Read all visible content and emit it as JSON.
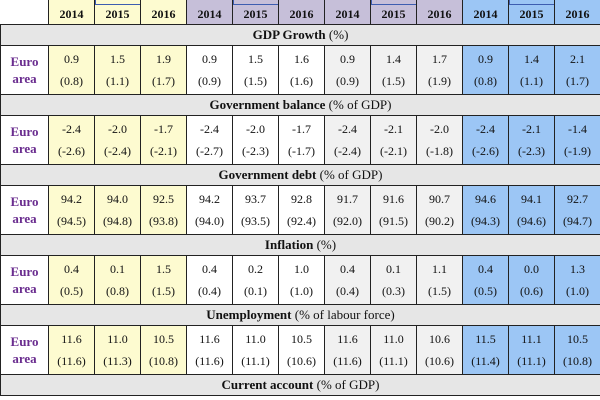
{
  "years": [
    "2014",
    "2015",
    "2016",
    "2014",
    "2015",
    "2016",
    "2014",
    "2015",
    "2016",
    "2014",
    "2015",
    "2016"
  ],
  "row_label": [
    "Euro",
    "area"
  ],
  "sections": [
    {
      "title": "GDP Growth",
      "title_note": " (%)",
      "values": [
        "0.9",
        "1.5",
        "1.9",
        "0.9",
        "1.5",
        "1.6",
        "0.9",
        "1.4",
        "1.7",
        "0.9",
        "1.4",
        "2.1"
      ],
      "previous": [
        "(0.8)",
        "(1.1)",
        "(1.7)",
        "(0.9)",
        "(1.5)",
        "(1.6)",
        "(0.9)",
        "(1.5)",
        "(1.9)",
        "(0.8)",
        "(1.1)",
        "(1.7)"
      ]
    },
    {
      "title": "Government balance",
      "title_note": " (% of GDP)",
      "values": [
        "-2.4",
        "-2.0",
        "-1.7",
        "-2.4",
        "-2.0",
        "-1.7",
        "-2.4",
        "-2.1",
        "-2.0",
        "-2.4",
        "-2.1",
        "-1.4"
      ],
      "previous": [
        "(-2.6)",
        "(-2.4)",
        "(-2.1)",
        "(-2.7)",
        "(-2.3)",
        "(-1.7)",
        "(-2.4)",
        "(-2.1)",
        "(-1.8)",
        "(-2.6)",
        "(-2.3)",
        "(-1.9)"
      ]
    },
    {
      "title": "Government debt",
      "title_note": " (% of GDP)",
      "values": [
        "94.2",
        "94.0",
        "92.5",
        "94.2",
        "93.7",
        "92.8",
        "91.7",
        "91.6",
        "90.7",
        "94.6",
        "94.1",
        "92.7"
      ],
      "previous": [
        "(94.5)",
        "(94.8)",
        "(93.8)",
        "(94.0)",
        "(93.5)",
        "(92.4)",
        "(92.0)",
        "(91.5)",
        "(90.2)",
        "(94.3)",
        "(94.6)",
        "(94.7)"
      ]
    },
    {
      "title": "Inflation",
      "title_note": " (%)",
      "values": [
        "0.4",
        "0.1",
        "1.5",
        "0.4",
        "0.2",
        "1.0",
        "0.4",
        "0.1",
        "1.1",
        "0.4",
        "0.0",
        "1.3"
      ],
      "previous": [
        "(0.5)",
        "(0.8)",
        "(1.5)",
        "(0.4)",
        "(0.1)",
        "(1.0)",
        "(0.4)",
        "(0.3)",
        "(1.5)",
        "(0.5)",
        "(0.6)",
        "(1.0)"
      ]
    },
    {
      "title": "Unemployment",
      "title_note": " (% of labour force)",
      "values": [
        "11.6",
        "11.0",
        "10.5",
        "11.6",
        "11.0",
        "10.5",
        "11.6",
        "11.0",
        "10.6",
        "11.5",
        "11.1",
        "10.5"
      ],
      "previous": [
        "(11.6)",
        "(11.3)",
        "(10.8)",
        "(11.6)",
        "(11.1)",
        "(10.6)",
        "(11.6)",
        "(11.1)",
        "(10.6)",
        "(11.4)",
        "(11.1)",
        "(10.8)"
      ]
    }
  ],
  "partial_section": {
    "title": "Current account",
    "title_note": " (% of GDP)"
  },
  "colors": {
    "forecaster_1": "#fdfbd0",
    "forecaster_2": "#ffffff",
    "forecaster_3": "#f1f1f1",
    "forecaster_4": "#9cc6f5",
    "header_band": "#c6bfd9",
    "section_band": "#e6e6e6",
    "label_text": "#6a2d8f"
  }
}
